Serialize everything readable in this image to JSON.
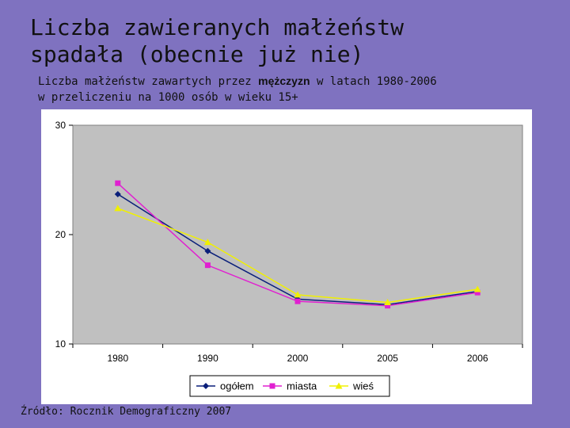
{
  "slide": {
    "title_line1": "Liczba zawieranych małżeństw",
    "title_line2": "spadała (obecnie już nie)",
    "subtitle_before": "Liczba małżeństw zawartych przez ",
    "subtitle_emphasis": "mężczyzn",
    "subtitle_after": " w latach 1980-2006",
    "subtitle_line2": "w przeliczeniu na 1000 osób w wieku 15+",
    "source": "Źródło: Rocznik Demograficzny 2007"
  },
  "chart_data": {
    "type": "line",
    "categories": [
      "1980",
      "1990",
      "2000",
      "2005",
      "2006"
    ],
    "y_ticks": [
      10,
      20,
      30
    ],
    "ylim": [
      10,
      30
    ],
    "grid": false,
    "legend_position": "bottom",
    "plot_background": "#c0c0c0",
    "series": [
      {
        "name": "ogółem",
        "color": "#0a1f7a",
        "marker": "diamond",
        "values": [
          23.7,
          18.5,
          14.1,
          13.6,
          14.8
        ]
      },
      {
        "name": "miasta",
        "color": "#e020d0",
        "marker": "square",
        "values": [
          24.7,
          17.2,
          13.9,
          13.5,
          14.7
        ]
      },
      {
        "name": "wieś",
        "color": "#f0f000",
        "marker": "triangle",
        "values": [
          22.4,
          19.3,
          14.5,
          13.8,
          15.0
        ]
      }
    ]
  }
}
